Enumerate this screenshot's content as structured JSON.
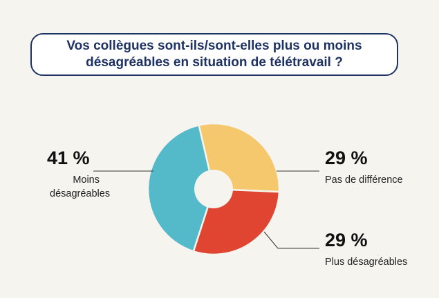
{
  "title": "Vos collègues sont-ils/sont-elles plus ou moins désagréables en situation de télétravail ?",
  "colors": {
    "title_border": "#1d3263",
    "title_text": "#1d3263",
    "leader_line": "#333333"
  },
  "chart_data": {
    "type": "pie",
    "variant": "donut",
    "title": "Vos collègues sont-ils/sont-elles plus ou moins désagréables en situation de télétravail ?",
    "slices": [
      {
        "label": "Pas de différence",
        "value": 29,
        "display": "29 %",
        "color": "#f6c86e"
      },
      {
        "label": "Plus désagréables",
        "value": 29,
        "display": "29 %",
        "color": "#e04532"
      },
      {
        "label": "Moins désagréables",
        "value": 41,
        "display": "41 %",
        "color": "#54b9c9"
      }
    ]
  }
}
